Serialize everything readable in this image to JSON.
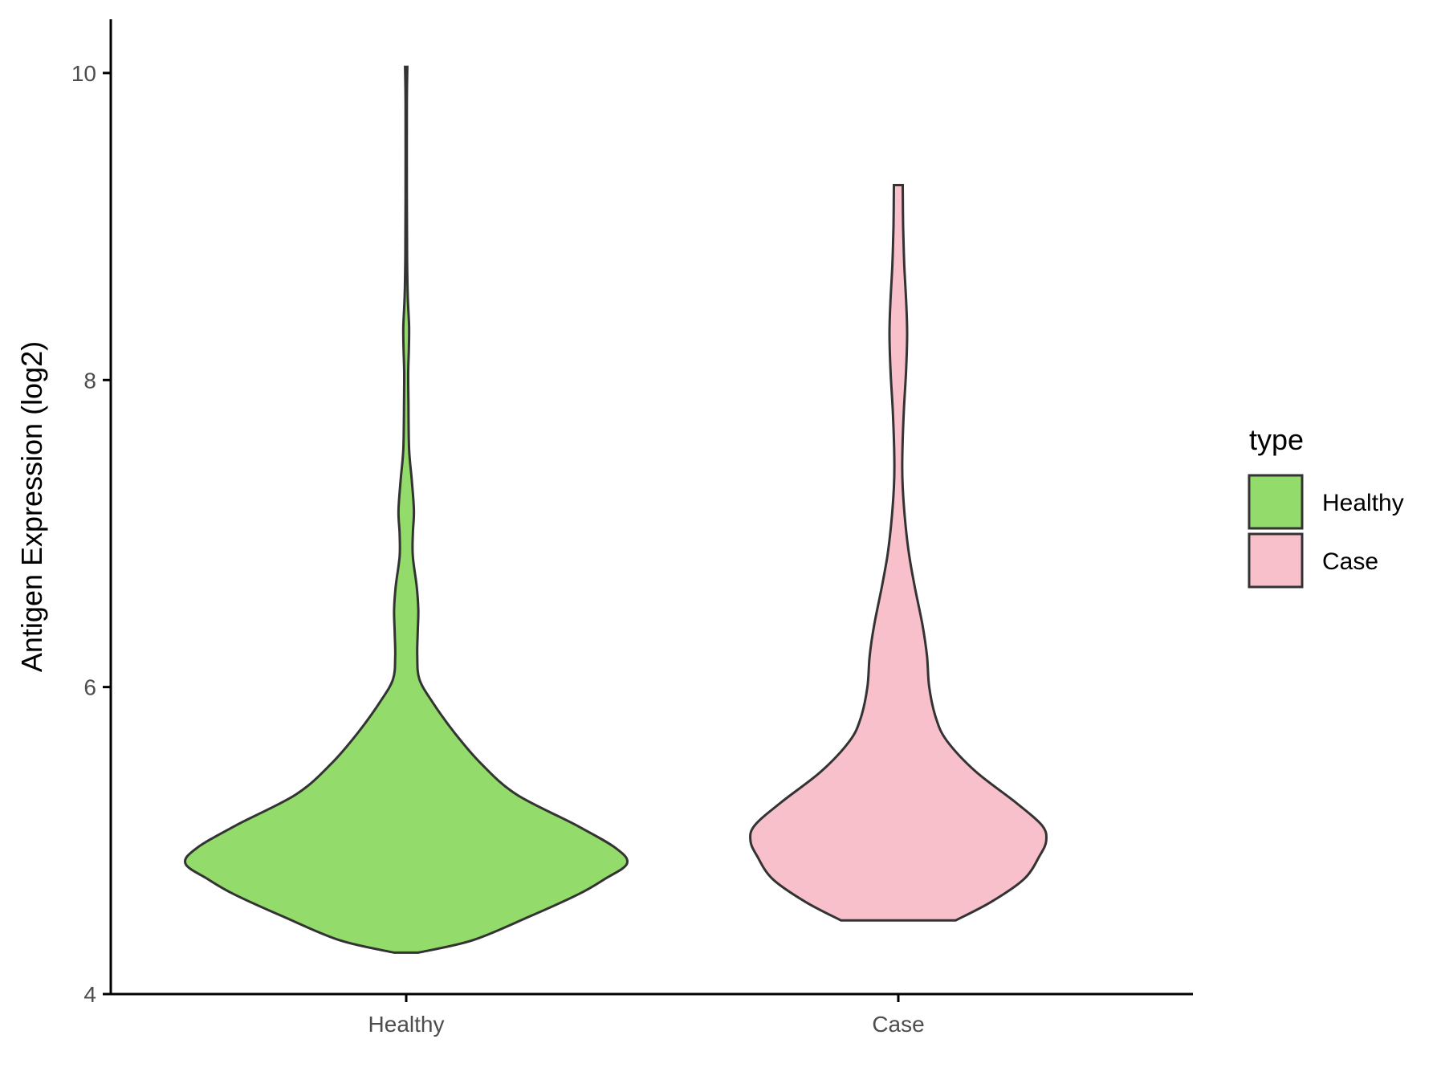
{
  "chart_data": {
    "type": "violin",
    "title": "",
    "xlabel": "",
    "ylabel": "Antigen Expression (log2)",
    "ylim": [
      4,
      10.35
    ],
    "yticks": [
      4,
      6,
      8,
      10
    ],
    "ytick_labels": [
      "4",
      "6",
      "8",
      "10"
    ],
    "categories": [
      "Healthy",
      "Case"
    ],
    "grid": false,
    "legend": {
      "title": "type",
      "position": "right",
      "entries": [
        {
          "label": "Healthy",
          "color": "#93db6a"
        },
        {
          "label": "Case",
          "color": "#f8c0cb"
        }
      ]
    },
    "series": [
      {
        "category": "Healthy",
        "color": "#93db6a",
        "min": 4.27,
        "max": 10.04,
        "density_profile": [
          [
            4.27,
            0.055
          ],
          [
            4.35,
            0.3
          ],
          [
            4.5,
            0.55
          ],
          [
            4.65,
            0.78
          ],
          [
            4.75,
            0.9
          ],
          [
            4.85,
            1.0
          ],
          [
            4.95,
            0.95
          ],
          [
            5.1,
            0.77
          ],
          [
            5.3,
            0.5
          ],
          [
            5.5,
            0.34
          ],
          [
            5.7,
            0.22
          ],
          [
            5.9,
            0.12
          ],
          [
            6.05,
            0.06
          ],
          [
            6.2,
            0.05
          ],
          [
            6.35,
            0.052
          ],
          [
            6.5,
            0.055
          ],
          [
            6.65,
            0.048
          ],
          [
            6.85,
            0.03
          ],
          [
            7.0,
            0.03
          ],
          [
            7.15,
            0.035
          ],
          [
            7.35,
            0.025
          ],
          [
            7.55,
            0.013
          ],
          [
            7.85,
            0.01
          ],
          [
            8.05,
            0.009
          ],
          [
            8.2,
            0.012
          ],
          [
            8.35,
            0.013
          ],
          [
            8.55,
            0.007
          ],
          [
            8.8,
            0.004
          ],
          [
            9.2,
            0.003
          ],
          [
            9.8,
            0.003
          ],
          [
            10.04,
            0.005
          ]
        ]
      },
      {
        "category": "Case",
        "color": "#f8c0cb",
        "min": 4.48,
        "max": 9.27,
        "density_profile": [
          [
            4.48,
            0.26
          ],
          [
            4.6,
            0.42
          ],
          [
            4.75,
            0.57
          ],
          [
            4.9,
            0.64
          ],
          [
            5.0,
            0.67
          ],
          [
            5.1,
            0.65
          ],
          [
            5.25,
            0.53
          ],
          [
            5.45,
            0.35
          ],
          [
            5.65,
            0.22
          ],
          [
            5.8,
            0.17
          ],
          [
            6.0,
            0.14
          ],
          [
            6.2,
            0.13
          ],
          [
            6.4,
            0.11
          ],
          [
            6.65,
            0.075
          ],
          [
            6.85,
            0.05
          ],
          [
            7.05,
            0.033
          ],
          [
            7.3,
            0.02
          ],
          [
            7.5,
            0.018
          ],
          [
            7.8,
            0.025
          ],
          [
            8.05,
            0.035
          ],
          [
            8.3,
            0.04
          ],
          [
            8.5,
            0.036
          ],
          [
            8.75,
            0.027
          ],
          [
            9.0,
            0.022
          ],
          [
            9.27,
            0.02
          ]
        ]
      }
    ]
  }
}
